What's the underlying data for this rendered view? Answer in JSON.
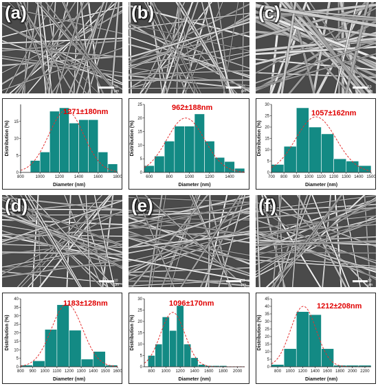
{
  "colors": {
    "bar": "#138a84",
    "bar_stroke": "#0b5e5a",
    "fit": "#e53030",
    "stat": "#e00000"
  },
  "panels": [
    {
      "label": "(a)",
      "scale_text": "10 μm"
    },
    {
      "label": "(b)",
      "scale_text": "10 μm"
    },
    {
      "label": "(c)",
      "scale_text": "10 μm"
    },
    {
      "label": "(d)",
      "scale_text": "10 μm"
    },
    {
      "label": "(e)",
      "scale_text": "10 μm"
    },
    {
      "label": "(f)",
      "scale_text": "10 μm"
    }
  ],
  "chart_data": [
    {
      "type": "bar",
      "title": "",
      "annotation": "1271±180nm",
      "xlabel": "Diameter (nm)",
      "ylabel": "Distribution (%)",
      "xlim": [
        800,
        1800
      ],
      "ylim": [
        0,
        20
      ],
      "xticks": [
        800,
        1000,
        1200,
        1400,
        1600,
        1800
      ],
      "yticks": [
        0,
        5,
        10,
        15
      ],
      "bin_width": 100,
      "x": [
        950,
        1050,
        1150,
        1250,
        1350,
        1450,
        1550,
        1650,
        1750
      ],
      "values": [
        3.5,
        6,
        18,
        19,
        14.5,
        15.5,
        15.5,
        6,
        2.5
      ],
      "fit": {
        "mean": 1271,
        "sd": 180,
        "peak": 18.3
      }
    },
    {
      "type": "bar",
      "title": "",
      "annotation": "962±188nm",
      "xlabel": "Diameter (nm)",
      "ylabel": "Distribution (%)",
      "xlim": [
        550,
        1550
      ],
      "ylim": [
        0,
        25
      ],
      "xticks": [
        600,
        800,
        1000,
        1200,
        1400
      ],
      "yticks": [
        0,
        5,
        10,
        15,
        20,
        25
      ],
      "bin_width": 100,
      "x": [
        600,
        700,
        800,
        900,
        1000,
        1100,
        1200,
        1300,
        1400,
        1500
      ],
      "values": [
        2.5,
        6,
        11.5,
        17,
        17,
        21.5,
        11.5,
        5.5,
        4,
        1.5
      ],
      "fit": {
        "mean": 962,
        "sd": 188,
        "peak": 20
      }
    },
    {
      "type": "bar",
      "title": "",
      "annotation": "1057±162nm",
      "xlabel": "Diameter (nm)",
      "ylabel": "Distribution (%)",
      "xlim": [
        700,
        1500
      ],
      "ylim": [
        0,
        30
      ],
      "xticks": [
        700,
        800,
        900,
        1000,
        1100,
        1200,
        1300,
        1400,
        1500
      ],
      "yticks": [
        0,
        5,
        10,
        15,
        20,
        25,
        30
      ],
      "bin_width": 100,
      "x": [
        750,
        850,
        950,
        1050,
        1150,
        1250,
        1350,
        1450
      ],
      "values": [
        3.5,
        11.5,
        28.5,
        20,
        17,
        6,
        5,
        3
      ],
      "fit": {
        "mean": 1057,
        "sd": 162,
        "peak": 24.5
      }
    },
    {
      "type": "bar",
      "title": "",
      "annotation": "1183±128nm",
      "xlabel": "Diameter (nm)",
      "ylabel": "Distribution (%)",
      "xlim": [
        800,
        1600
      ],
      "ylim": [
        0,
        40
      ],
      "xticks": [
        800,
        900,
        1000,
        1100,
        1200,
        1300,
        1400,
        1500,
        1600
      ],
      "yticks": [
        0,
        5,
        10,
        15,
        20,
        25,
        30,
        35,
        40
      ],
      "bin_width": 100,
      "x": [
        850,
        950,
        1050,
        1150,
        1250,
        1350,
        1450,
        1550
      ],
      "values": [
        1,
        3.5,
        22,
        36.5,
        21.5,
        4.5,
        9,
        1
      ],
      "fit": {
        "mean": 1183,
        "sd": 128,
        "peak": 37
      }
    },
    {
      "type": "bar",
      "title": "",
      "annotation": "1096±170nm",
      "xlabel": "Diameter (nm)",
      "ylabel": "Distribution (%)",
      "xlim": [
        700,
        2100
      ],
      "ylim": [
        0,
        30
      ],
      "xticks": [
        800,
        1000,
        1200,
        1400,
        1600,
        1800,
        2000
      ],
      "yticks": [
        0,
        5,
        10,
        15,
        20,
        25,
        30
      ],
      "bin_width": 100,
      "x": [
        800,
        900,
        1000,
        1100,
        1200,
        1300,
        1400,
        1500,
        1600,
        1700,
        1800
      ],
      "values": [
        5,
        10,
        22,
        16,
        27,
        10,
        4,
        1,
        0.5,
        0.5,
        0.5
      ],
      "fit": {
        "mean": 1096,
        "sd": 170,
        "peak": 24
      }
    },
    {
      "type": "bar",
      "title": "",
      "annotation": "1212±208nm",
      "xlabel": "Diameter (nm)",
      "ylabel": "Distribution (%)",
      "xlim": [
        700,
        2300
      ],
      "ylim": [
        0,
        45
      ],
      "xticks": [
        800,
        1000,
        1200,
        1400,
        1600,
        1800,
        2000,
        2200
      ],
      "yticks": [
        0,
        5,
        10,
        15,
        20,
        25,
        30,
        35,
        40,
        45
      ],
      "bin_width": 200,
      "x": [
        800,
        1000,
        1200,
        1400,
        1600,
        1800,
        2000,
        2200
      ],
      "values": [
        1.5,
        12,
        36.5,
        34.5,
        12,
        1,
        1,
        1
      ],
      "fit": {
        "mean": 1212,
        "sd": 208,
        "peak": 40
      }
    }
  ]
}
